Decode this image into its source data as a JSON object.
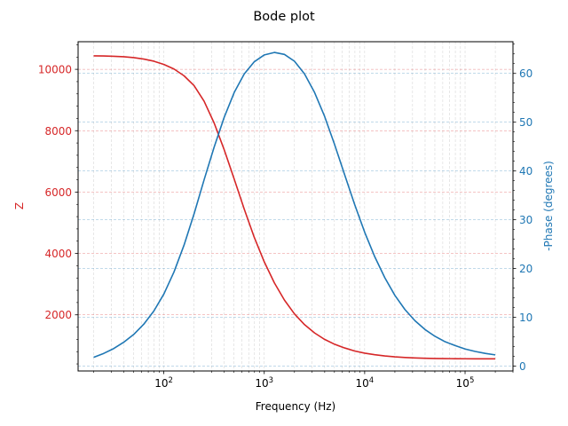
{
  "chart_data": {
    "type": "line",
    "title": "Bode plot",
    "xlabel": "Frequency (Hz)",
    "ylabel_left": "Z",
    "ylabel_right": "-Phase (degrees)",
    "xscale": "log",
    "xlim": [
      14,
      300000
    ],
    "ylim_left": [
      170,
      10900
    ],
    "ylim_right": [
      -1,
      66.5
    ],
    "x_tick_labels": [
      {
        "value": 100,
        "base": "10",
        "exp": "2"
      },
      {
        "value": 1000,
        "base": "10",
        "exp": "3"
      },
      {
        "value": 10000,
        "base": "10",
        "exp": "4"
      },
      {
        "value": 100000,
        "base": "10",
        "exp": "5"
      }
    ],
    "left_ticks": [
      2000,
      4000,
      6000,
      8000,
      10000
    ],
    "left_tick_labels": [
      "2000",
      "4000",
      "6000",
      "8000",
      "10000"
    ],
    "right_ticks": [
      0,
      10,
      20,
      30,
      40,
      50,
      60
    ],
    "right_tick_labels": [
      "0",
      "10",
      "20",
      "30",
      "40",
      "50",
      "60"
    ],
    "colors": {
      "left": "#d62728",
      "right": "#1f77b4"
    },
    "grid": true,
    "x": [
      20,
      25.2,
      31.7,
      39.9,
      50.2,
      63.2,
      79.6,
      100.2,
      126.2,
      158.9,
      200,
      251.8,
      317,
      399.1,
      502.4,
      632.5,
      796.2,
      1002.4,
      1261.9,
      1588.7,
      2000,
      2517.9,
      3169.8,
      3990.5,
      5023.8,
      6324.6,
      7962.1,
      10023.7,
      12619.1,
      15886.6,
      20000,
      25178.5,
      31697.9,
      39905.2,
      50237.7,
      63245.6,
      79621.4,
      100237.4,
      126191.5,
      158865.7,
      200000
    ],
    "series": [
      {
        "name": "Z",
        "axis": "left",
        "values": [
          10440,
          10435,
          10425,
          10410,
          10380,
          10335,
          10265,
          10160,
          10010,
          9790,
          9470,
          8960,
          8250,
          7380,
          6420,
          5440,
          4520,
          3720,
          3040,
          2480,
          2030,
          1680,
          1410,
          1200,
          1040,
          920,
          820,
          750,
          700,
          660,
          630,
          610,
          595,
          585,
          578,
          573,
          570,
          568,
          566,
          565,
          565
        ]
      },
      {
        "name": "-Phase",
        "axis": "right",
        "values": [
          1.8,
          2.6,
          3.6,
          4.9,
          6.5,
          8.6,
          11.3,
          14.8,
          19.3,
          24.8,
          31.2,
          38.2,
          44.9,
          51,
          56.1,
          59.9,
          62.4,
          63.8,
          64.3,
          63.9,
          62.5,
          59.9,
          56.1,
          51.2,
          45.4,
          39.2,
          33.1,
          27.4,
          22.4,
          18.1,
          14.5,
          11.6,
          9.3,
          7.5,
          6.1,
          5,
          4.2,
          3.5,
          3,
          2.6,
          2.3
        ]
      }
    ]
  }
}
